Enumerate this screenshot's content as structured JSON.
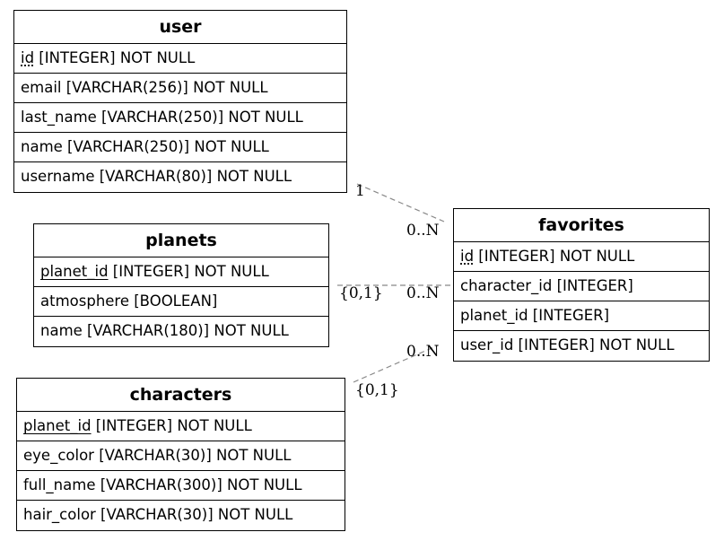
{
  "entities": {
    "user": {
      "title": "user",
      "fields": [
        {
          "key": "id",
          "rest": " [INTEGER] NOT NULL"
        },
        {
          "key": "",
          "rest": "email [VARCHAR(256)] NOT NULL"
        },
        {
          "key": "",
          "rest": "last_name [VARCHAR(250)] NOT NULL"
        },
        {
          "key": "",
          "rest": "name [VARCHAR(250)] NOT NULL"
        },
        {
          "key": "",
          "rest": "username [VARCHAR(80)] NOT NULL"
        }
      ]
    },
    "planets": {
      "title": "planets",
      "fields": [
        {
          "key": "planet_id",
          "rest": " [INTEGER] NOT NULL"
        },
        {
          "key": "",
          "rest": "atmosphere [BOOLEAN]"
        },
        {
          "key": "",
          "rest": "name [VARCHAR(180)] NOT NULL"
        }
      ]
    },
    "characters": {
      "title": "characters",
      "fields": [
        {
          "key": "planet_id",
          "rest": " [INTEGER] NOT NULL"
        },
        {
          "key": "",
          "rest": "eye_color [VARCHAR(30)] NOT NULL"
        },
        {
          "key": "",
          "rest": "full_name [VARCHAR(300)] NOT NULL"
        },
        {
          "key": "",
          "rest": "hair_color [VARCHAR(30)] NOT NULL"
        }
      ]
    },
    "favorites": {
      "title": "favorites",
      "fields": [
        {
          "key": "id",
          "rest": " [INTEGER] NOT NULL"
        },
        {
          "key": "",
          "rest": "character_id [INTEGER]"
        },
        {
          "key": "",
          "rest": "planet_id [INTEGER]"
        },
        {
          "key": "",
          "rest": "user_id [INTEGER] NOT NULL"
        }
      ]
    }
  },
  "relationships": {
    "user_favorites": {
      "from_card": "1",
      "to_card": "0..N"
    },
    "planets_favorites": {
      "from_card": "{0,1}",
      "to_card": "0..N"
    },
    "characters_favorites": {
      "from_card": "{0,1}",
      "to_card": "0..N"
    }
  },
  "colors": {
    "edge": "#888888",
    "border": "#000000"
  }
}
